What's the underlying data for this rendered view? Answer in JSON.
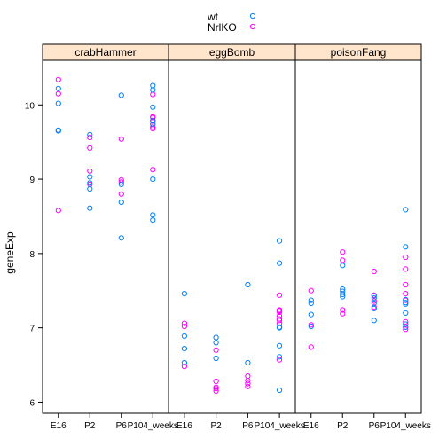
{
  "chart_data": {
    "type": "scatter",
    "title": "",
    "ylabel": "geneExp",
    "xlabel": "",
    "ylim": [
      5.85,
      10.6
    ],
    "yticks": [
      6,
      7,
      8,
      9,
      10
    ],
    "categories": [
      "E16",
      "P2",
      "P6",
      "P104_weeks"
    ],
    "legend_position": "top-center",
    "series": [
      {
        "name": "wt",
        "color": "#0080ff"
      },
      {
        "name": "NrlKO",
        "color": "#ff00ff"
      }
    ],
    "panels": [
      {
        "name": "crabHammer",
        "points": {
          "wt": [
            [
              "E16",
              10.22
            ],
            [
              "E16",
              10.02
            ],
            [
              "E16",
              9.66
            ],
            [
              "E16",
              9.65
            ],
            [
              "P2",
              9.6
            ],
            [
              "P2",
              9.03
            ],
            [
              "P2",
              8.95
            ],
            [
              "P2",
              8.87
            ],
            [
              "P2",
              8.61
            ],
            [
              "P6",
              10.13
            ],
            [
              "P6",
              8.93
            ],
            [
              "P6",
              8.69
            ],
            [
              "P6",
              8.21
            ],
            [
              "P104_weeks",
              10.26
            ],
            [
              "P104_weeks",
              9.79
            ],
            [
              "P104_weeks",
              9.0
            ],
            [
              "P104_weeks",
              8.52
            ],
            [
              "P104_weeks",
              8.45
            ],
            [
              "P104_weeks",
              10.2
            ],
            [
              "P104_weeks",
              9.97
            ],
            [
              "P104_weeks",
              9.74
            ]
          ],
          "NrlKO": [
            [
              "E16",
              10.34
            ],
            [
              "E16",
              10.15
            ],
            [
              "E16",
              8.58
            ],
            [
              "P2",
              9.56
            ],
            [
              "P2",
              9.42
            ],
            [
              "P2",
              9.11
            ],
            [
              "P2",
              8.93
            ],
            [
              "P6",
              9.54
            ],
            [
              "P6",
              8.99
            ],
            [
              "P6",
              8.96
            ],
            [
              "P6",
              8.8
            ],
            [
              "P104_weeks",
              10.14
            ],
            [
              "P104_weeks",
              9.84
            ],
            [
              "P104_weeks",
              9.79
            ],
            [
              "P104_weeks",
              9.78
            ],
            [
              "P104_weeks",
              9.83
            ],
            [
              "P104_weeks",
              9.74
            ],
            [
              "P104_weeks",
              9.7
            ],
            [
              "P104_weeks",
              9.68
            ],
            [
              "P104_weeks",
              9.13
            ]
          ]
        }
      },
      {
        "name": "eggBomb",
        "points": {
          "wt": [
            [
              "E16",
              7.46
            ],
            [
              "E16",
              6.89
            ],
            [
              "E16",
              6.72
            ],
            [
              "E16",
              6.53
            ],
            [
              "P2",
              6.87
            ],
            [
              "P2",
              6.8
            ],
            [
              "P2",
              6.59
            ],
            [
              "P6",
              7.58
            ],
            [
              "P6",
              6.53
            ],
            [
              "P104_weeks",
              8.17
            ],
            [
              "P104_weeks",
              6.76
            ],
            [
              "P104_weeks",
              6.16
            ],
            [
              "P104_weeks",
              7.87
            ],
            [
              "P104_weeks",
              7.01
            ],
            [
              "P104_weeks",
              7.0
            ],
            [
              "P104_weeks",
              6.61
            ]
          ],
          "NrlKO": [
            [
              "E16",
              7.06
            ],
            [
              "E16",
              7.02
            ],
            [
              "E16",
              6.48
            ],
            [
              "P2",
              6.7
            ],
            [
              "P2",
              6.28
            ],
            [
              "P2",
              6.2
            ],
            [
              "P2",
              6.18
            ],
            [
              "P2",
              6.15
            ],
            [
              "P6",
              6.35
            ],
            [
              "P6",
              6.29
            ],
            [
              "P6",
              6.25
            ],
            [
              "P6",
              6.21
            ],
            [
              "P104_weeks",
              7.44
            ],
            [
              "P104_weeks",
              7.24
            ],
            [
              "P104_weeks",
              7.23
            ],
            [
              "P104_weeks",
              7.1
            ],
            [
              "P104_weeks",
              7.21
            ],
            [
              "P104_weeks",
              7.16
            ],
            [
              "P104_weeks",
              7.12
            ],
            [
              "P104_weeks",
              7.06
            ],
            [
              "P104_weeks",
              6.57
            ]
          ]
        }
      },
      {
        "name": "poisonFang",
        "points": {
          "wt": [
            [
              "E16",
              7.37
            ],
            [
              "E16",
              7.33
            ],
            [
              "E16",
              7.18
            ],
            [
              "E16",
              7.02
            ],
            [
              "P2",
              7.84
            ],
            [
              "P2",
              7.52
            ],
            [
              "P2",
              7.49
            ],
            [
              "P2",
              7.45
            ],
            [
              "P2",
              7.42
            ],
            [
              "P6",
              7.43
            ],
            [
              "P6",
              7.4
            ],
            [
              "P6",
              7.33
            ],
            [
              "P6",
              7.26
            ],
            [
              "P6",
              7.1
            ],
            [
              "P104_weeks",
              8.59
            ],
            [
              "P104_weeks",
              8.09
            ],
            [
              "P104_weeks",
              7.38
            ],
            [
              "P104_weeks",
              7.2
            ],
            [
              "P104_weeks",
              7.01
            ],
            [
              "P104_weeks",
              7.34
            ],
            [
              "P104_weeks",
              7.32
            ],
            [
              "P104_weeks",
              7.05
            ]
          ],
          "NrlKO": [
            [
              "E16",
              7.5
            ],
            [
              "E16",
              7.04
            ],
            [
              "E16",
              6.74
            ],
            [
              "P2",
              8.02
            ],
            [
              "P2",
              7.91
            ],
            [
              "P2",
              7.24
            ],
            [
              "P2",
              7.19
            ],
            [
              "P6",
              7.76
            ],
            [
              "P6",
              7.44
            ],
            [
              "P6",
              7.36
            ],
            [
              "P6",
              7.28
            ],
            [
              "P104_weeks",
              7.95
            ],
            [
              "P104_weeks",
              7.79
            ],
            [
              "P104_weeks",
              7.58
            ],
            [
              "P104_weeks",
              7.46
            ],
            [
              "P104_weeks",
              7.37
            ],
            [
              "P104_weeks",
              7.08
            ],
            [
              "P104_weeks",
              7.01
            ],
            [
              "P104_weeks",
              6.98
            ]
          ]
        }
      }
    ]
  }
}
